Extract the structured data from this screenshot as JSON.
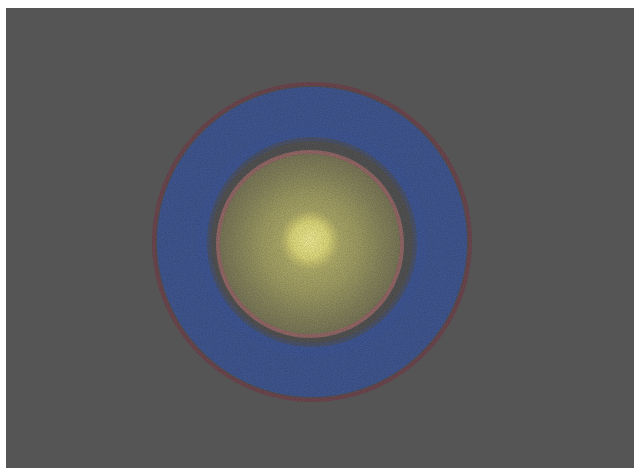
{
  "scene": {
    "background_color": "#555555",
    "frame_color": "#ffffff",
    "layers": [
      {
        "name": "outer-ring",
        "color": "#7a4650"
      },
      {
        "name": "blue-band",
        "color": "#3f5aa0"
      },
      {
        "name": "inner-ring",
        "color": "#a8706e"
      },
      {
        "name": "yellow-disk",
        "color": "#cdc874"
      },
      {
        "name": "bright-core",
        "color": "#eeea86"
      }
    ]
  }
}
